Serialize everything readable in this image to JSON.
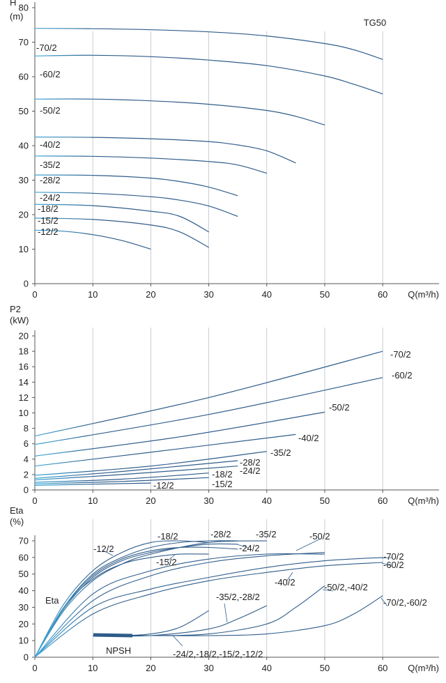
{
  "colors": {
    "curve": "#2f5c8a",
    "curve_light": "#3fa8d8",
    "grid": "#b8c2cc",
    "axis": "#555555"
  },
  "chart_data": [
    {
      "type": "line",
      "id": "head",
      "title": "TG50",
      "ylabel": "H",
      "yunit": "(m)",
      "xlabel": "Q(m³/h)",
      "xlim": [
        0,
        70
      ],
      "ylim": [
        0,
        80
      ],
      "xticks": [
        "0",
        "10",
        "20",
        "30",
        "40",
        "50",
        "60"
      ],
      "yticks": [
        "0",
        "10",
        "20",
        "30",
        "40",
        "50",
        "60",
        "70",
        "80"
      ],
      "grid": "vertical",
      "series": [
        {
          "name": "-70/2",
          "x": [
            0,
            10,
            20,
            30,
            40,
            50,
            55,
            60
          ],
          "y": [
            74,
            73.9,
            73.6,
            73,
            71.8,
            69.6,
            67.8,
            65
          ]
        },
        {
          "name": "-60/2",
          "x": [
            0,
            10,
            20,
            30,
            40,
            50,
            55,
            60
          ],
          "y": [
            66,
            66.2,
            65.8,
            64.8,
            63.2,
            60.2,
            57.8,
            55
          ]
        },
        {
          "name": "-50/2",
          "x": [
            0,
            10,
            20,
            30,
            40,
            45,
            50
          ],
          "y": [
            53.5,
            53.5,
            53,
            52,
            50.2,
            48.5,
            46
          ]
        },
        {
          "name": "-40/2",
          "x": [
            0,
            10,
            20,
            30,
            35,
            40,
            45
          ],
          "y": [
            42.5,
            42.4,
            42,
            41.2,
            40.2,
            38.5,
            35
          ]
        },
        {
          "name": "-35/2",
          "x": [
            0,
            10,
            20,
            30,
            35,
            40
          ],
          "y": [
            37,
            36.9,
            36.4,
            35.4,
            34.4,
            32
          ]
        },
        {
          "name": "-28/2",
          "x": [
            0,
            10,
            20,
            25,
            30,
            35
          ],
          "y": [
            31.5,
            31.4,
            30.6,
            29.6,
            28,
            25.5
          ]
        },
        {
          "name": "-24/2",
          "x": [
            0,
            10,
            20,
            25,
            30,
            35
          ],
          "y": [
            26.5,
            26.2,
            25.2,
            24.2,
            22.5,
            19.5
          ]
        },
        {
          "name": "-18/2",
          "x": [
            0,
            10,
            20,
            25,
            30
          ],
          "y": [
            23,
            22.6,
            21,
            19.5,
            15
          ]
        },
        {
          "name": "-15/2",
          "x": [
            0,
            10,
            20,
            25,
            30
          ],
          "y": [
            19,
            18.6,
            17,
            15,
            10.5
          ]
        },
        {
          "name": "-12/2",
          "x": [
            0,
            5,
            10,
            15,
            20
          ],
          "y": [
            15.5,
            15.2,
            14.2,
            12.5,
            10
          ]
        }
      ]
    },
    {
      "type": "line",
      "id": "power",
      "ylabel": "P2",
      "yunit": "(kW)",
      "xlabel": "Q(m³/h)",
      "xlim": [
        0,
        70
      ],
      "ylim": [
        0,
        20
      ],
      "xticks": [
        "0",
        "10",
        "20",
        "30",
        "40",
        "50",
        "60"
      ],
      "yticks": [
        "0",
        "2",
        "4",
        "6",
        "8",
        "10",
        "12",
        "14",
        "16",
        "18",
        "20"
      ],
      "grid": "vertical",
      "series": [
        {
          "name": "-70/2",
          "x": [
            0,
            30,
            60
          ],
          "y": [
            7,
            12,
            18
          ]
        },
        {
          "name": "-60/2",
          "x": [
            0,
            30,
            60
          ],
          "y": [
            5.9,
            9.8,
            14.6
          ]
        },
        {
          "name": "-50/2",
          "x": [
            0,
            25,
            50
          ],
          "y": [
            4.4,
            6.9,
            10.1
          ]
        },
        {
          "name": "-40/2",
          "x": [
            0,
            20,
            45
          ],
          "y": [
            3.1,
            4.9,
            7.2
          ]
        },
        {
          "name": "-35/2",
          "x": [
            0,
            20,
            40
          ],
          "y": [
            1.9,
            3.1,
            5
          ]
        },
        {
          "name": "-28/2",
          "x": [
            0,
            15,
            35
          ],
          "y": [
            1.5,
            2.4,
            3.8
          ]
        },
        {
          "name": "-24/2",
          "x": [
            0,
            15,
            35
          ],
          "y": [
            1.3,
            2,
            3.1
          ]
        },
        {
          "name": "-18/2",
          "x": [
            0,
            15,
            30
          ],
          "y": [
            1,
            1.4,
            2.2
          ]
        },
        {
          "name": "-15/2",
          "x": [
            0,
            15,
            30
          ],
          "y": [
            0.8,
            1.1,
            1.6
          ]
        },
        {
          "name": "-12/2",
          "x": [
            0,
            20
          ],
          "y": [
            0.6,
            0.9
          ]
        }
      ]
    },
    {
      "type": "line",
      "id": "efficiency",
      "ylabel": "Eta",
      "yunit": "(%)",
      "xlabel": "Q(m³/h)",
      "xlim": [
        0,
        70
      ],
      "ylim": [
        0,
        70
      ],
      "xticks": [
        "0",
        "10",
        "20",
        "30",
        "40",
        "50",
        "60"
      ],
      "yticks": [
        "0",
        "10",
        "20",
        "30",
        "40",
        "50",
        "60",
        "70"
      ],
      "grid": "vertical",
      "series_labels": {
        "eta": "Eta",
        "npsh": "NPSH"
      },
      "eta_series": [
        {
          "name": "-12/2",
          "x": [
            0,
            5,
            10,
            15,
            20,
            25,
            30
          ],
          "y": [
            0,
            30,
            47,
            56,
            60,
            62,
            62
          ]
        },
        {
          "name": "-18/2",
          "x": [
            0,
            5,
            10,
            15,
            20,
            25,
            30
          ],
          "y": [
            0,
            32,
            52,
            63,
            69,
            70,
            69
          ]
        },
        {
          "name": "-15/2",
          "x": [
            0,
            5,
            10,
            15,
            20,
            25,
            30,
            35
          ],
          "y": [
            0,
            30,
            49,
            59,
            64,
            66,
            66,
            65
          ]
        },
        {
          "name": "-28/2",
          "x": [
            0,
            5,
            10,
            15,
            20,
            25,
            30,
            35
          ],
          "y": [
            0,
            30,
            50,
            60,
            66,
            69,
            70,
            70
          ]
        },
        {
          "name": "-24/2",
          "x": [
            0,
            5,
            10,
            15,
            20,
            25,
            30,
            35
          ],
          "y": [
            0,
            29,
            48,
            58,
            63,
            66,
            68,
            68
          ]
        },
        {
          "name": "-35/2",
          "x": [
            0,
            5,
            10,
            15,
            20,
            30,
            40
          ],
          "y": [
            0,
            28,
            46,
            56,
            62,
            69,
            70
          ]
        },
        {
          "name": "-50/2",
          "x": [
            0,
            10,
            20,
            30,
            40,
            50
          ],
          "y": [
            0,
            38,
            52,
            59,
            62,
            62
          ]
        },
        {
          "name": "-40/2",
          "x": [
            0,
            10,
            20,
            30,
            40,
            50
          ],
          "y": [
            0,
            34,
            49,
            57,
            61,
            63
          ]
        },
        {
          "name": "-70/2",
          "x": [
            0,
            10,
            20,
            30,
            40,
            50,
            60
          ],
          "y": [
            0,
            30,
            41,
            48,
            54,
            58,
            60
          ]
        },
        {
          "name": "-60/2",
          "x": [
            0,
            10,
            20,
            30,
            40,
            50,
            60
          ],
          "y": [
            0,
            26,
            38,
            46,
            51,
            55,
            57
          ]
        }
      ],
      "npsh_series": [
        {
          "name": "-24/2,-18/2,-15/2,-12/2",
          "x": [
            10,
            15,
            20,
            25,
            30
          ],
          "y": [
            13,
            13,
            14,
            18,
            28
          ]
        },
        {
          "name": "-35/2,-28/2",
          "x": [
            10,
            20,
            30,
            35,
            40
          ],
          "y": [
            13,
            13,
            17,
            23,
            31
          ]
        },
        {
          "name": "-50/2,-40/2",
          "x": [
            10,
            20,
            30,
            40,
            45,
            50
          ],
          "y": [
            13,
            13,
            14,
            20,
            30,
            43
          ]
        },
        {
          "name": "-70/2,-60/2",
          "x": [
            10,
            20,
            30,
            40,
            50,
            55,
            60
          ],
          "y": [
            13,
            13,
            13,
            14,
            19,
            26,
            37
          ]
        }
      ]
    }
  ]
}
